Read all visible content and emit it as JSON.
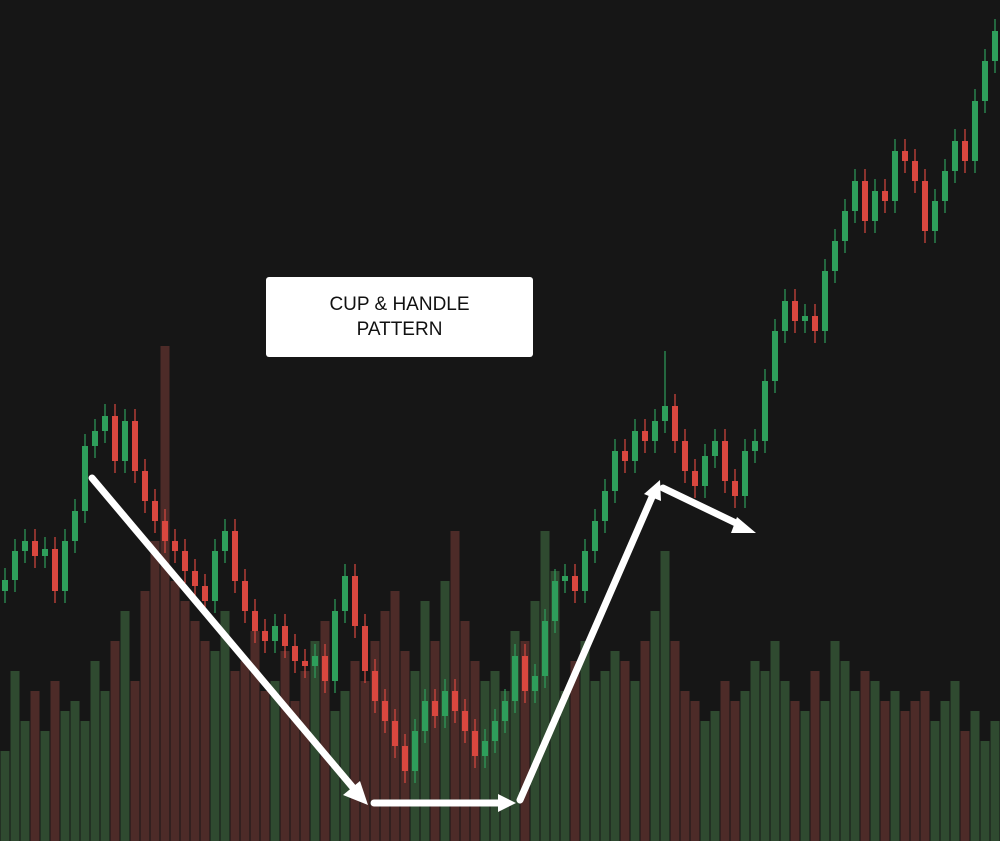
{
  "chart_data": {
    "type": "candlestick",
    "annotation": "CUP & HANDLE PATTERN",
    "ylim": [
      0,
      841
    ],
    "up_color": "#2e9e5b",
    "down_color": "#d9473f",
    "volume_up_color": "#2f4a30",
    "volume_down_color": "#4d2b28",
    "open": [
      250,
      261,
      290,
      300,
      285,
      292,
      250,
      300,
      330,
      395,
      410,
      425,
      380,
      420,
      370,
      340,
      320,
      300,
      290,
      270,
      255,
      240,
      290,
      310,
      260,
      230,
      210,
      200,
      215,
      195,
      180,
      175,
      185,
      160,
      230,
      265,
      215,
      170,
      140,
      120,
      95,
      70,
      110,
      140,
      125,
      150,
      130,
      110,
      85,
      100,
      120,
      140,
      185,
      150,
      165,
      220,
      260,
      265,
      250,
      290,
      320,
      350,
      390,
      380,
      410,
      400,
      420,
      435,
      400,
      370,
      355,
      385,
      400,
      360,
      345,
      390,
      400,
      460,
      510,
      540,
      520,
      525,
      510,
      570,
      600,
      630,
      660,
      620,
      650,
      640,
      690,
      680,
      660,
      610,
      640,
      670,
      700,
      680,
      740,
      780
    ],
    "high": [
      273,
      302,
      312,
      312,
      304,
      304,
      312,
      342,
      407,
      422,
      437,
      437,
      432,
      432,
      382,
      352,
      332,
      312,
      302,
      282,
      267,
      302,
      322,
      322,
      272,
      242,
      222,
      227,
      227,
      207,
      192,
      197,
      197,
      242,
      277,
      277,
      227,
      182,
      152,
      132,
      107,
      122,
      152,
      152,
      162,
      162,
      142,
      122,
      112,
      132,
      152,
      197,
      197,
      177,
      232,
      272,
      277,
      277,
      302,
      332,
      362,
      402,
      402,
      422,
      422,
      432,
      490,
      447,
      412,
      382,
      397,
      412,
      412,
      372,
      402,
      412,
      472,
      522,
      552,
      552,
      537,
      537,
      582,
      612,
      642,
      672,
      672,
      662,
      662,
      702,
      702,
      692,
      672,
      652,
      682,
      712,
      712,
      752,
      792,
      822
    ],
    "low": [
      238,
      249,
      278,
      273,
      273,
      238,
      238,
      288,
      318,
      383,
      398,
      368,
      368,
      358,
      328,
      308,
      288,
      278,
      258,
      243,
      228,
      228,
      278,
      248,
      218,
      198,
      188,
      188,
      183,
      168,
      163,
      163,
      148,
      148,
      218,
      203,
      158,
      128,
      108,
      83,
      58,
      58,
      98,
      113,
      113,
      118,
      98,
      73,
      73,
      88,
      108,
      128,
      138,
      138,
      153,
      208,
      248,
      238,
      238,
      278,
      308,
      338,
      368,
      368,
      388,
      388,
      408,
      388,
      358,
      343,
      343,
      373,
      348,
      333,
      333,
      378,
      388,
      448,
      498,
      508,
      508,
      498,
      498,
      558,
      588,
      618,
      608,
      608,
      628,
      628,
      668,
      648,
      598,
      598,
      628,
      658,
      668,
      668,
      728,
      768
    ],
    "close": [
      261,
      290,
      300,
      285,
      292,
      250,
      300,
      330,
      395,
      410,
      425,
      380,
      420,
      370,
      340,
      320,
      300,
      290,
      270,
      255,
      240,
      290,
      310,
      260,
      230,
      210,
      200,
      215,
      195,
      180,
      175,
      185,
      160,
      230,
      265,
      215,
      170,
      140,
      120,
      95,
      70,
      110,
      140,
      125,
      150,
      130,
      110,
      85,
      100,
      120,
      140,
      185,
      150,
      165,
      220,
      260,
      265,
      250,
      290,
      320,
      350,
      390,
      380,
      410,
      400,
      420,
      435,
      400,
      370,
      355,
      385,
      400,
      360,
      345,
      390,
      400,
      460,
      510,
      540,
      520,
      525,
      510,
      570,
      600,
      630,
      660,
      620,
      650,
      640,
      690,
      680,
      660,
      610,
      640,
      670,
      700,
      680,
      740,
      780,
      810
    ],
    "volume": [
      90,
      170,
      120,
      150,
      110,
      160,
      130,
      140,
      120,
      180,
      150,
      200,
      230,
      160,
      250,
      300,
      495,
      260,
      240,
      220,
      200,
      190,
      230,
      170,
      180,
      210,
      150,
      160,
      190,
      140,
      170,
      200,
      220,
      130,
      150,
      180,
      160,
      200,
      230,
      250,
      190,
      170,
      240,
      200,
      260,
      310,
      220,
      180,
      160,
      170,
      150,
      210,
      200,
      240,
      310,
      270,
      150,
      180,
      200,
      160,
      170,
      190,
      180,
      160,
      200,
      230,
      290,
      200,
      150,
      140,
      120,
      130,
      160,
      140,
      150,
      180,
      170,
      200,
      160,
      140,
      130,
      170,
      140,
      200,
      180,
      150,
      170,
      160,
      140,
      150,
      130,
      140,
      150,
      120,
      140,
      160,
      110,
      130,
      100,
      120
    ]
  }
}
